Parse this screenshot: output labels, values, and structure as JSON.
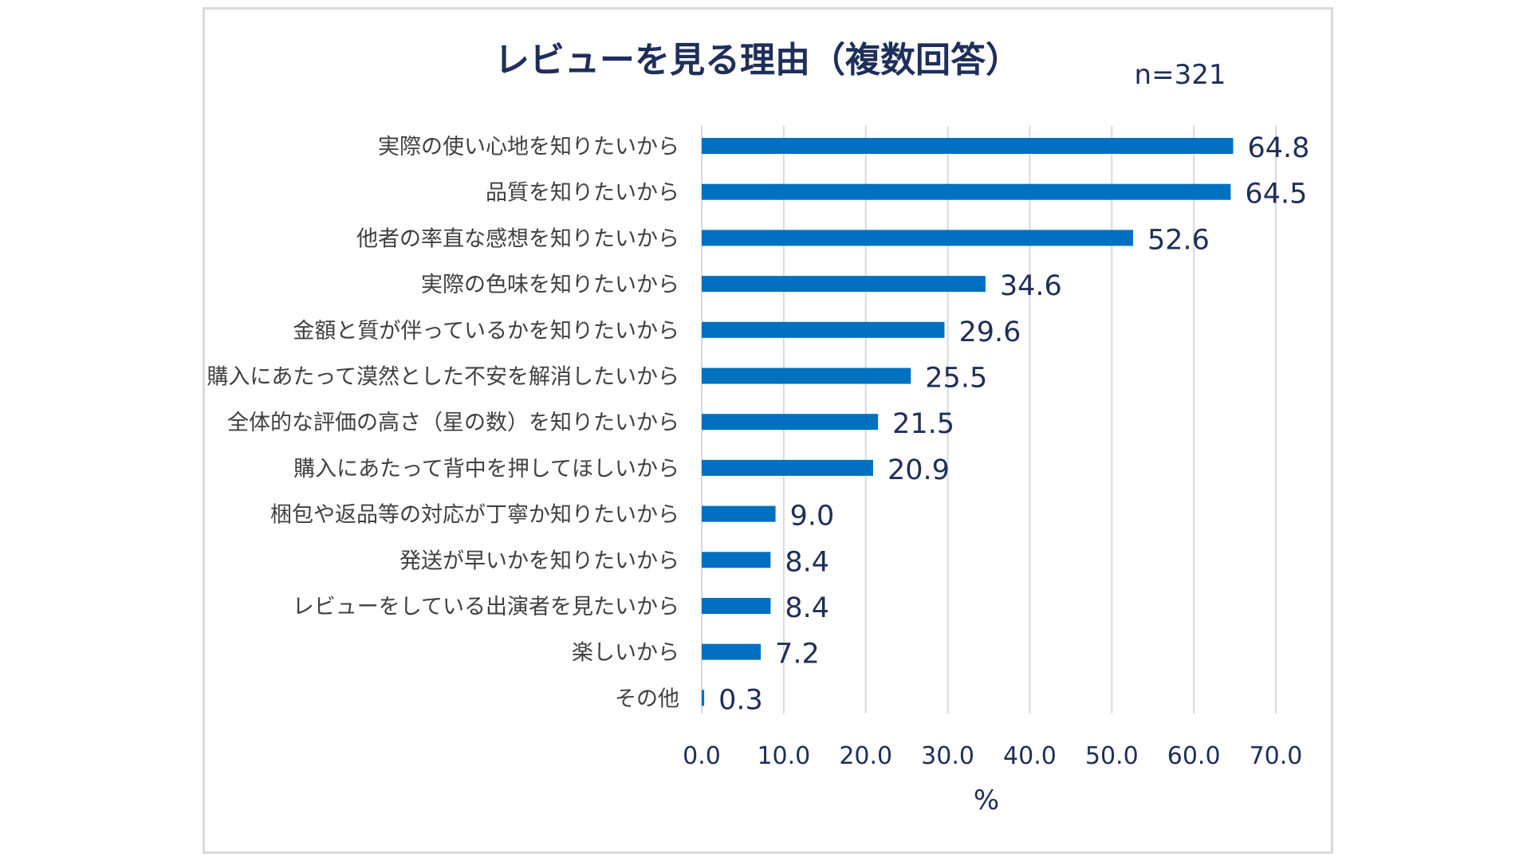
{
  "subtitle": "n=321",
  "chart_data": {
    "type": "bar",
    "orientation": "horizontal",
    "title": "レビューを見る理由（複数回答）",
    "xlabel": "%",
    "ylabel": "",
    "xlim": [
      0,
      70
    ],
    "ticks": [
      "0.0",
      "10.0",
      "20.0",
      "30.0",
      "40.0",
      "50.0",
      "60.0",
      "70.0"
    ],
    "tick_values": [
      0,
      10,
      20,
      30,
      40,
      50,
      60,
      70
    ],
    "grid": true,
    "categories": [
      "実際の使い心地を知りたいから",
      "品質を知りたいから",
      "他者の率直な感想を知りたいから",
      "実際の色味を知りたいから",
      "金額と質が伴っているかを知りたいから",
      "購入にあたって漠然とした不安を解消したいから",
      "全体的な評価の高さ（星の数）を知りたいから",
      "購入にあたって背中を押してほしいから",
      "梱包や返品等の対応が丁寧か知りたいから",
      "発送が早いかを知りたいから",
      "レビューをしている出演者を見たいから",
      "楽しいから",
      "その他"
    ],
    "values": [
      64.8,
      64.5,
      52.6,
      34.6,
      29.6,
      25.5,
      21.5,
      20.9,
      9.0,
      8.4,
      8.4,
      7.2,
      0.3
    ],
    "value_labels": [
      "64.8",
      "64.5",
      "52.6",
      "34.6",
      "29.6",
      "25.5",
      "21.5",
      "20.9",
      "9.0",
      "8.4",
      "8.4",
      "7.2",
      "0.3"
    ],
    "colors": {
      "bar": "#0070c0",
      "grid": "#d9d9d9",
      "text": "#1f2e5a",
      "category_text": "#404040"
    }
  }
}
